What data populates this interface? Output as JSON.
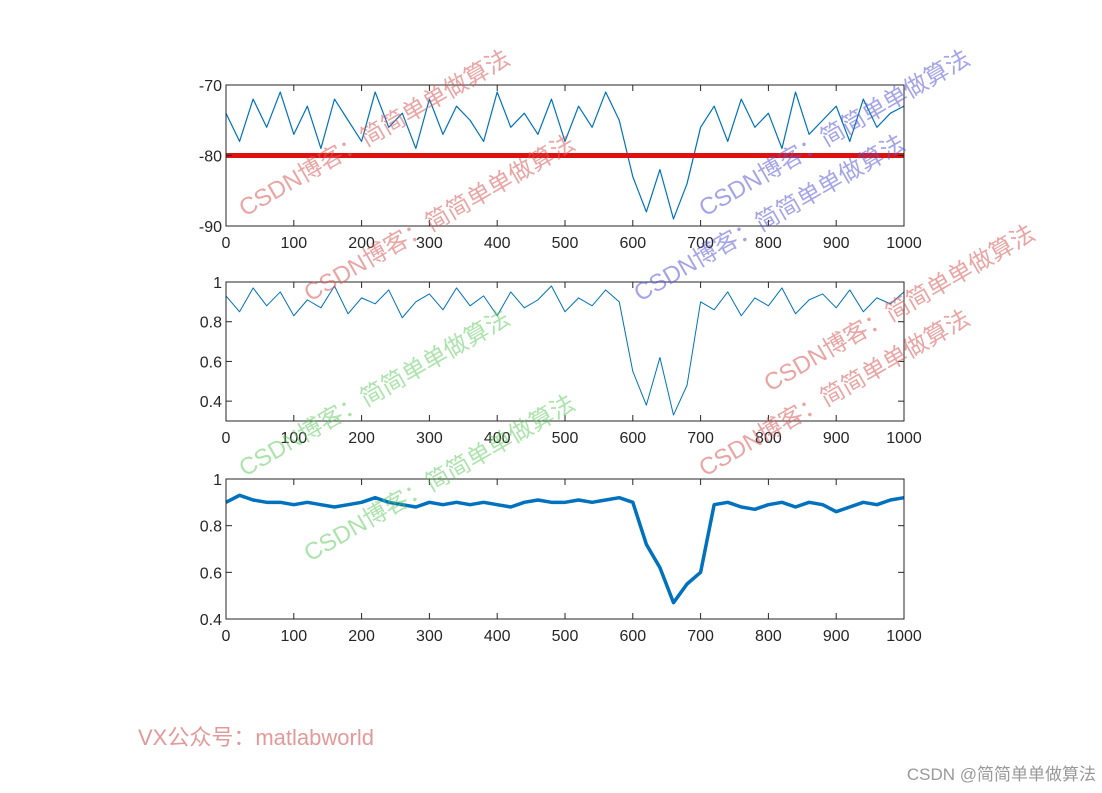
{
  "chart_data": [
    {
      "type": "line",
      "x": [
        0,
        20,
        40,
        60,
        80,
        100,
        120,
        140,
        160,
        180,
        200,
        220,
        240,
        260,
        280,
        300,
        320,
        340,
        360,
        380,
        400,
        420,
        440,
        460,
        480,
        500,
        520,
        540,
        560,
        580,
        600,
        620,
        640,
        660,
        680,
        700,
        720,
        740,
        760,
        780,
        800,
        820,
        840,
        860,
        880,
        900,
        920,
        940,
        960,
        980,
        1000
      ],
      "series": [
        {
          "color": "#0072bd",
          "values": [
            -74,
            -78,
            -72,
            -76,
            -71,
            -77,
            -73,
            -79,
            -72,
            -75,
            -78,
            -71,
            -76,
            -74,
            -79,
            -72,
            -77,
            -73,
            -75,
            -78,
            -71,
            -76,
            -74,
            -77,
            -72,
            -78,
            -73,
            -76,
            -71,
            -75,
            -83,
            -88,
            -82,
            -89,
            -84,
            -76,
            -73,
            -78,
            -72,
            -76,
            -74,
            -79,
            -71,
            -77,
            -75,
            -73,
            -78,
            -72,
            -76,
            -74,
            -73
          ]
        }
      ],
      "hline": {
        "value": -80,
        "color": "#e01010"
      },
      "xlim": [
        0,
        1000
      ],
      "xticks": [
        0,
        100,
        200,
        300,
        400,
        500,
        600,
        700,
        800,
        900,
        1000
      ],
      "ylim": [
        -90,
        -70
      ],
      "yticks": [
        -90,
        -80,
        -70
      ]
    },
    {
      "type": "line",
      "x": [
        0,
        20,
        40,
        60,
        80,
        100,
        120,
        140,
        160,
        180,
        200,
        220,
        240,
        260,
        280,
        300,
        320,
        340,
        360,
        380,
        400,
        420,
        440,
        460,
        480,
        500,
        520,
        540,
        560,
        580,
        600,
        620,
        640,
        660,
        680,
        700,
        720,
        740,
        760,
        780,
        800,
        820,
        840,
        860,
        880,
        900,
        920,
        940,
        960,
        980,
        1000
      ],
      "series": [
        {
          "color": "#0072bd",
          "values": [
            0.93,
            0.85,
            0.97,
            0.88,
            0.95,
            0.83,
            0.91,
            0.87,
            0.98,
            0.84,
            0.92,
            0.89,
            0.96,
            0.82,
            0.9,
            0.94,
            0.86,
            0.97,
            0.88,
            0.93,
            0.83,
            0.95,
            0.87,
            0.91,
            0.98,
            0.85,
            0.92,
            0.88,
            0.96,
            0.9,
            0.55,
            0.38,
            0.62,
            0.33,
            0.48,
            0.9,
            0.86,
            0.95,
            0.83,
            0.92,
            0.88,
            0.97,
            0.84,
            0.91,
            0.94,
            0.87,
            0.96,
            0.85,
            0.92,
            0.89,
            0.95
          ]
        }
      ],
      "xlim": [
        0,
        1000
      ],
      "xticks": [
        0,
        100,
        200,
        300,
        400,
        500,
        600,
        700,
        800,
        900,
        1000
      ],
      "ylim": [
        0.3,
        1
      ],
      "yticks": [
        0.4,
        0.6,
        0.8,
        1
      ]
    },
    {
      "type": "line",
      "x": [
        0,
        20,
        40,
        60,
        80,
        100,
        120,
        140,
        160,
        180,
        200,
        220,
        240,
        260,
        280,
        300,
        320,
        340,
        360,
        380,
        400,
        420,
        440,
        460,
        480,
        500,
        520,
        540,
        560,
        580,
        600,
        620,
        640,
        660,
        680,
        700,
        720,
        740,
        760,
        780,
        800,
        820,
        840,
        860,
        880,
        900,
        920,
        940,
        960,
        980,
        1000
      ],
      "series": [
        {
          "color": "#0072bd",
          "values": [
            0.9,
            0.93,
            0.91,
            0.9,
            0.9,
            0.89,
            0.9,
            0.89,
            0.88,
            0.89,
            0.9,
            0.92,
            0.9,
            0.89,
            0.88,
            0.9,
            0.89,
            0.9,
            0.89,
            0.9,
            0.89,
            0.88,
            0.9,
            0.91,
            0.9,
            0.9,
            0.91,
            0.9,
            0.91,
            0.92,
            0.9,
            0.72,
            0.62,
            0.47,
            0.55,
            0.6,
            0.89,
            0.9,
            0.88,
            0.87,
            0.89,
            0.9,
            0.88,
            0.9,
            0.89,
            0.86,
            0.88,
            0.9,
            0.89,
            0.91,
            0.92
          ]
        }
      ],
      "xlim": [
        0,
        1000
      ],
      "xticks": [
        0,
        100,
        200,
        300,
        400,
        500,
        600,
        700,
        800,
        900,
        1000
      ],
      "ylim": [
        0.4,
        1
      ],
      "yticks": [
        0.4,
        0.6,
        0.8,
        1
      ]
    }
  ],
  "watermarks": [
    {
      "text": "CSDN博客：简简单单做算法",
      "color": "rgba(215,90,90,0.55)"
    },
    {
      "text": "CSDN博客：简简单单做算法",
      "color": "rgba(215,90,90,0.55)"
    },
    {
      "text": "CSDN博客：简简单单做算法",
      "color": "rgba(90,90,215,0.55)"
    },
    {
      "text": "CSDN博客：简简单单做算法",
      "color": "rgba(90,90,215,0.55)"
    },
    {
      "text": "CSDN博客：简简单单做算法",
      "color": "rgba(215,90,90,0.55)"
    },
    {
      "text": "CSDN博客：简简单单做算法",
      "color": "rgba(215,90,90,0.55)"
    },
    {
      "text": "CSDN博客：简简单单做算法",
      "color": "rgba(90,200,90,0.5)"
    },
    {
      "text": "CSDN博客：简简单单做算法",
      "color": "rgba(90,200,90,0.5)"
    }
  ],
  "footer_note": "VX公众号：matlabworld",
  "credit": "CSDN @简简单单做算法"
}
